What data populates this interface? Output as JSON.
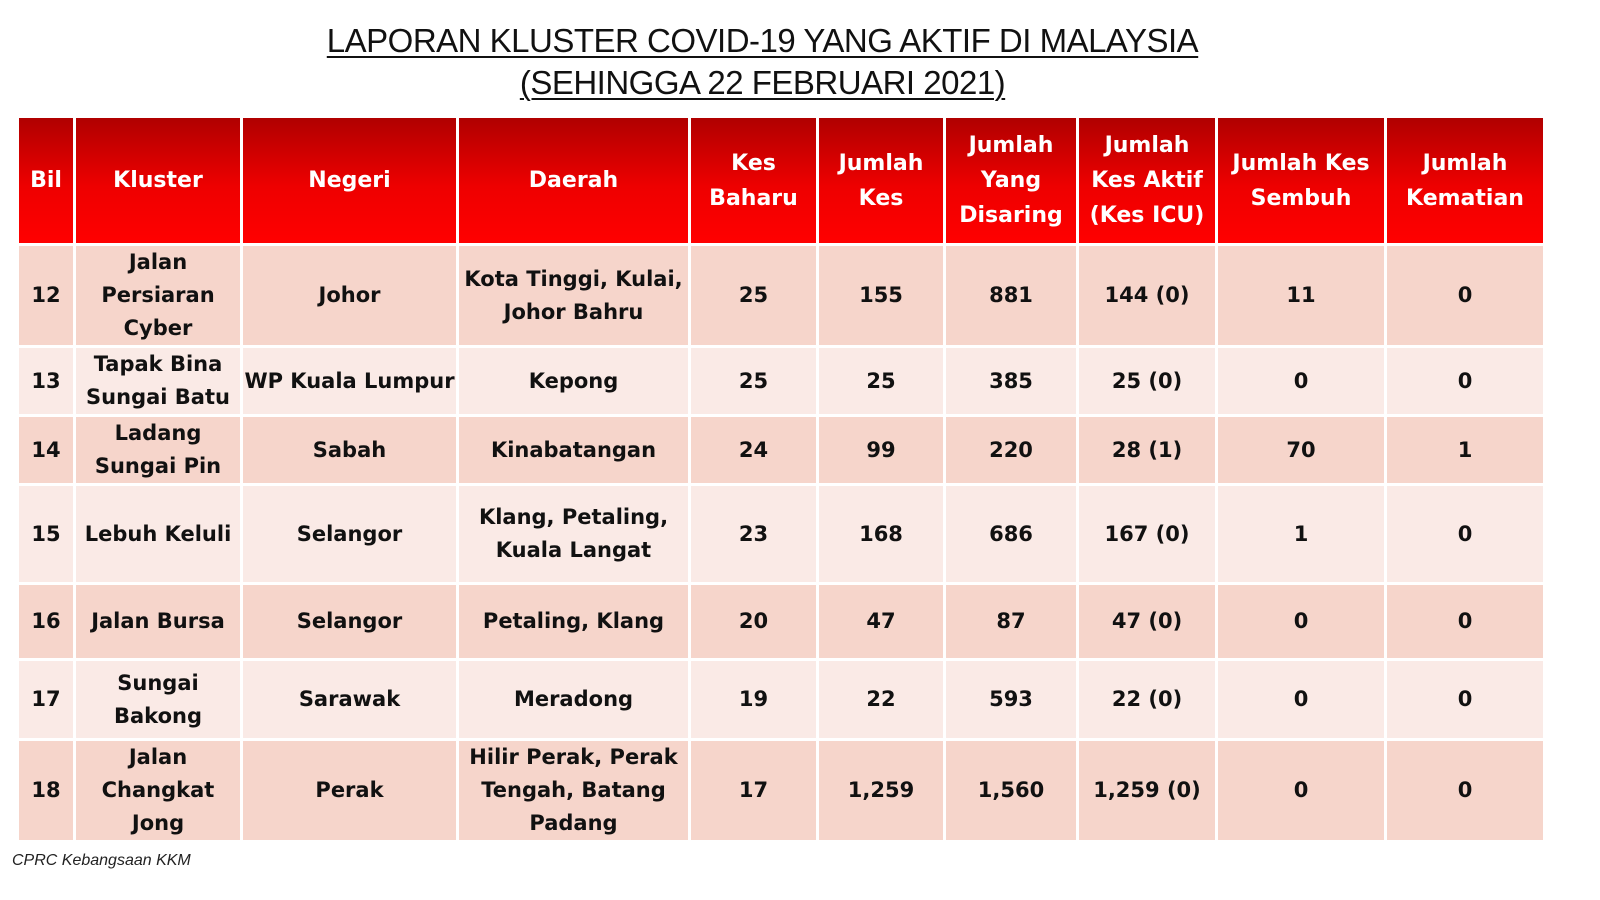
{
  "title": {
    "line1": "LAPORAN KLUSTER COVID-19 YANG AKTIF DI MALAYSIA",
    "line2": "(SEHINGGA 22 FEBRUARI 2021)"
  },
  "columns": [
    "Bil",
    "Kluster",
    "Negeri",
    "Daerah",
    "Kes Baharu",
    "Jumlah Kes",
    "Jumlah Yang Disaring",
    "Jumlah Kes Aktif (Kes ICU)",
    "Jumlah Kes Sembuh",
    "Jumlah Kematian"
  ],
  "rows": [
    [
      "12",
      "Jalan Persiaran Cyber",
      "Johor",
      "Kota Tinggi, Kulai, Johor Bahru",
      "25",
      "155",
      "881",
      "144 (0)",
      "11",
      "0"
    ],
    [
      "13",
      "Tapak Bina Sungai Batu",
      "WP Kuala Lumpur",
      "Kepong",
      "25",
      "25",
      "385",
      "25 (0)",
      "0",
      "0"
    ],
    [
      "14",
      "Ladang Sungai Pin",
      "Sabah",
      "Kinabatangan",
      "24",
      "99",
      "220",
      "28 (1)",
      "70",
      "1"
    ],
    [
      "15",
      "Lebuh Keluli",
      "Selangor",
      "Klang, Petaling, Kuala Langat",
      "23",
      "168",
      "686",
      "167 (0)",
      "1",
      "0"
    ],
    [
      "16",
      "Jalan Bursa",
      "Selangor",
      "Petaling, Klang",
      "20",
      "47",
      "87",
      "47 (0)",
      "0",
      "0"
    ],
    [
      "17",
      "Sungai Bakong",
      "Sarawak",
      "Meradong",
      "19",
      "22",
      "593",
      "22 (0)",
      "0",
      "0"
    ],
    [
      "18",
      "Jalan Changkat Jong",
      "Perak",
      "Hilir Perak, Perak Tengah, Batang Padang",
      "17",
      "1,259",
      "1,560",
      "1,259 (0)",
      "0",
      "0"
    ]
  ],
  "footer": "CPRC Kebangsaan KKM",
  "colors": {
    "header": "#e60000",
    "row_odd": "#f6d5cb",
    "row_even": "#faeae6"
  }
}
